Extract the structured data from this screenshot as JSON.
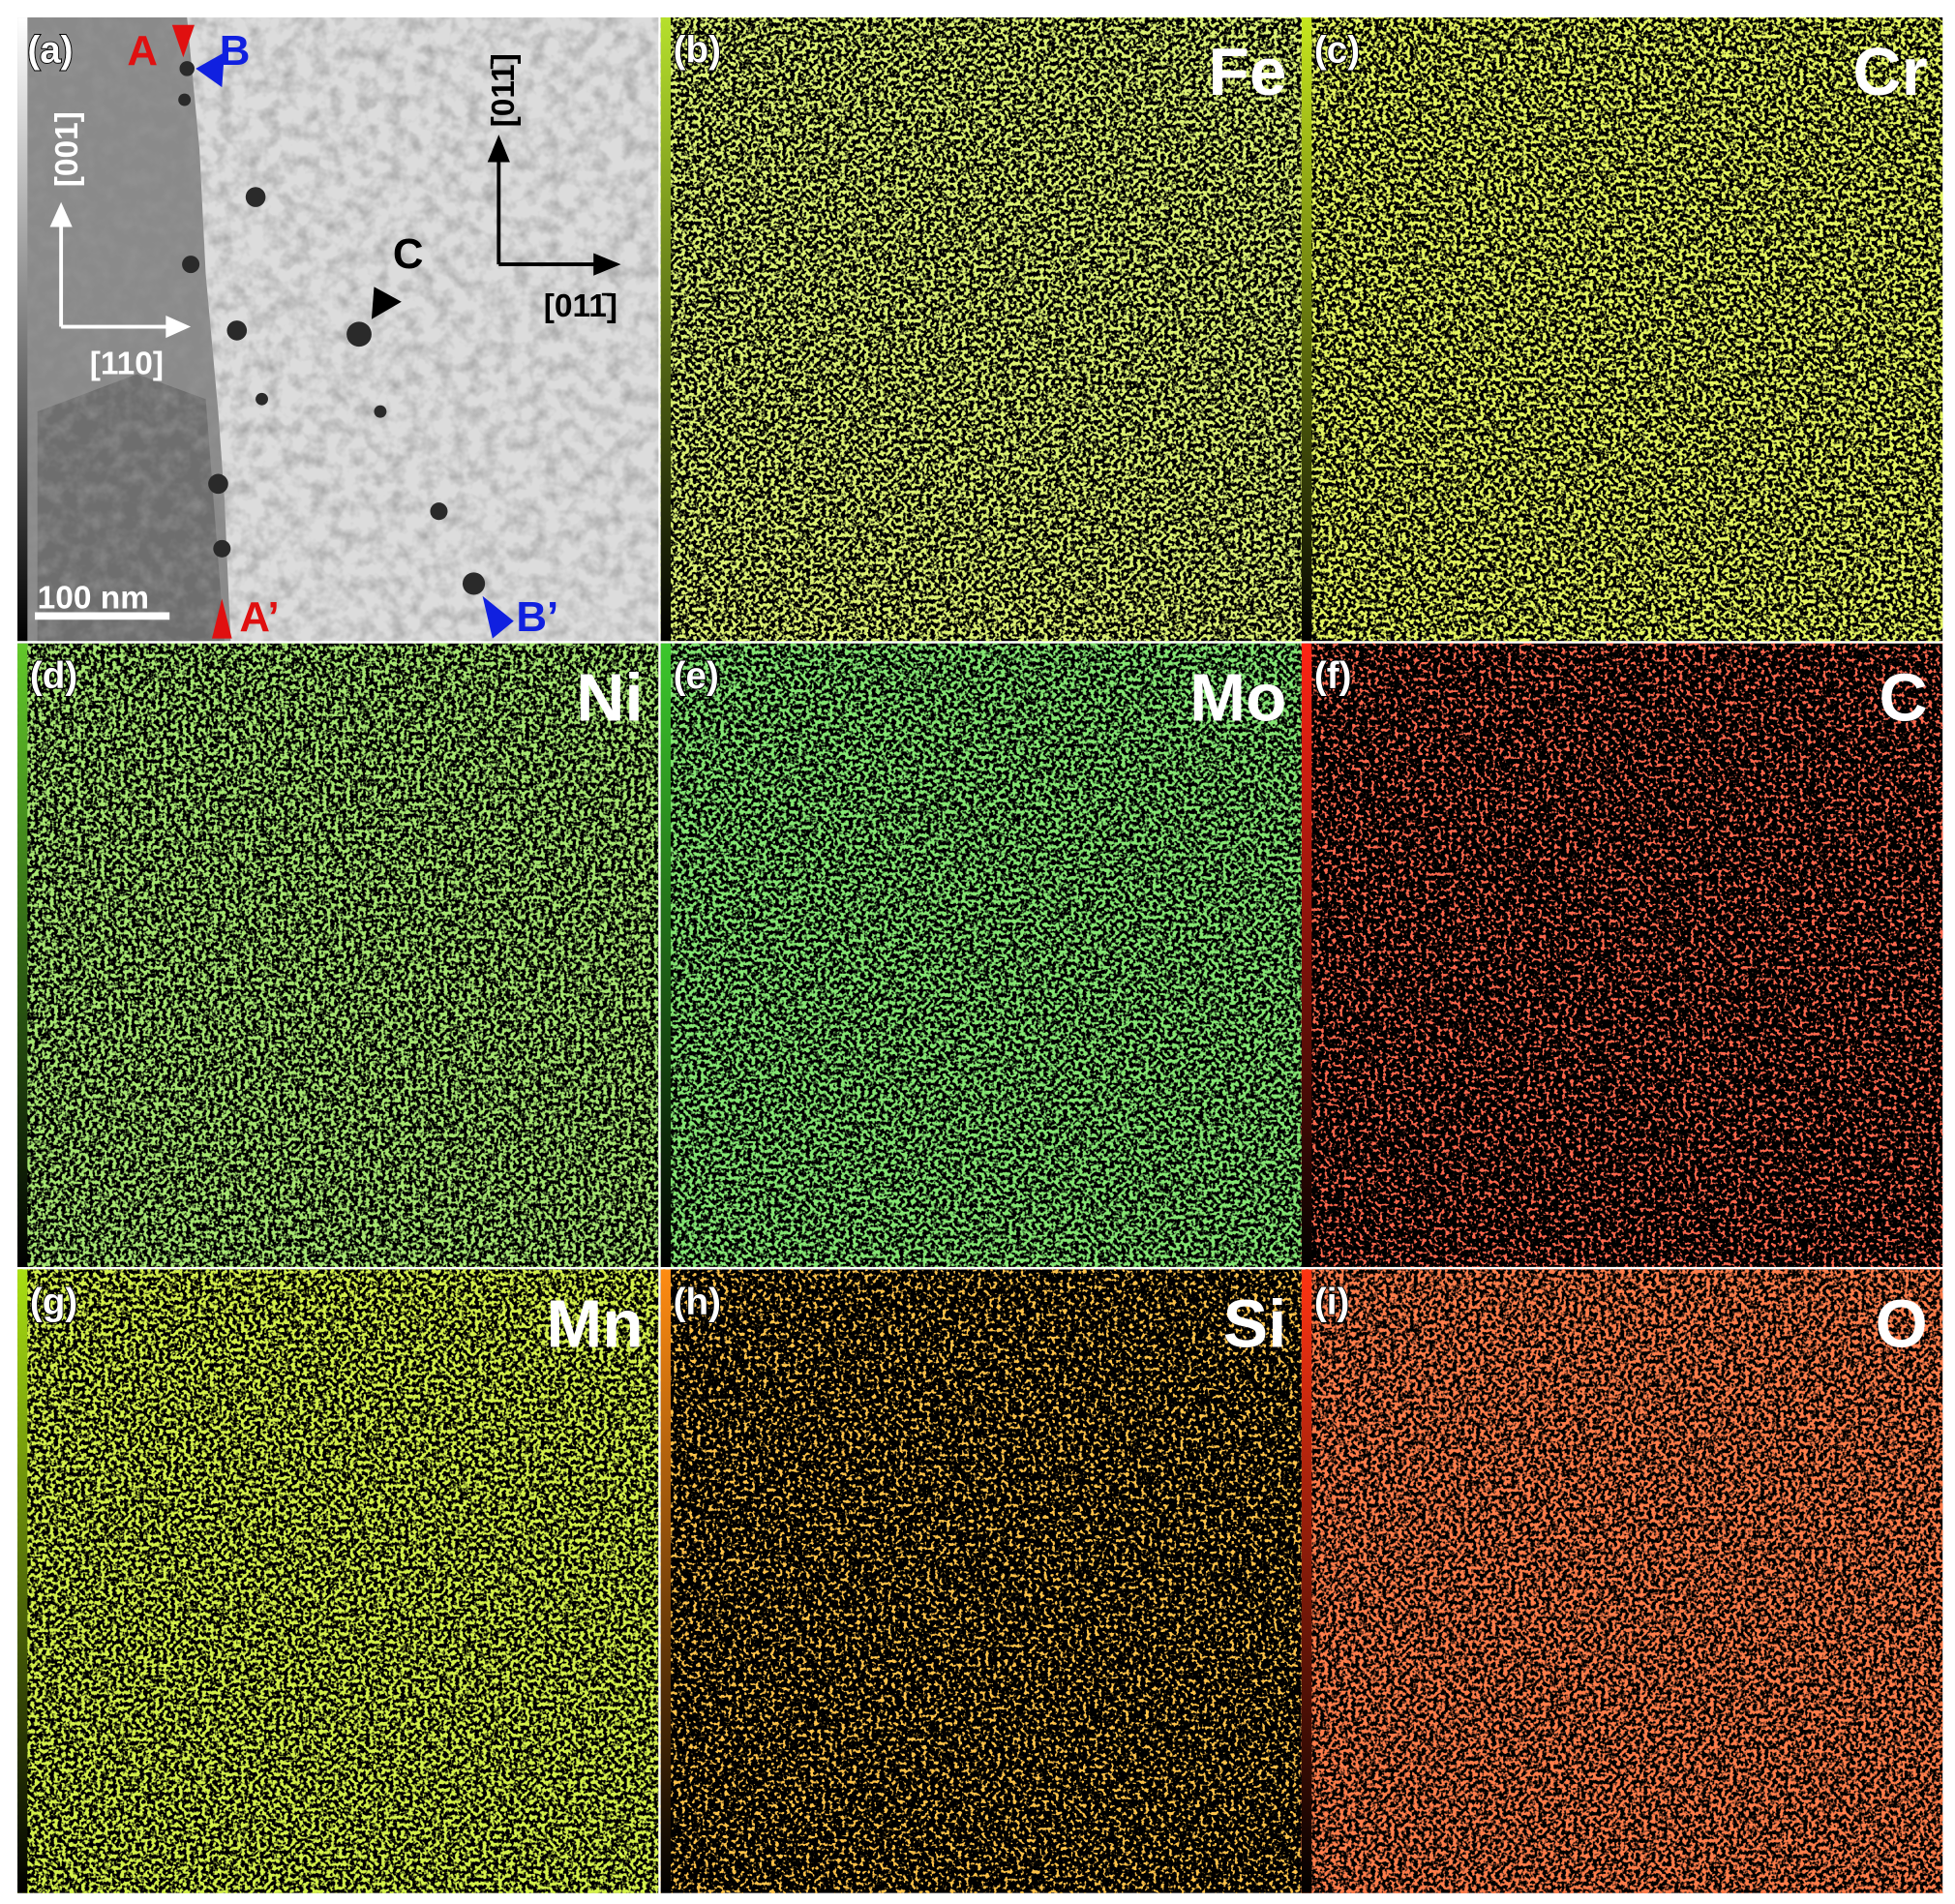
{
  "panels": [
    {
      "label": "(a)"
    },
    {
      "label": "(b)",
      "element": "Fe",
      "color": "#b6e02c"
    },
    {
      "label": "(c)",
      "element": "Cr",
      "color": "#c6e61e"
    },
    {
      "label": "(d)",
      "element": "Ni",
      "color": "#62c82a"
    },
    {
      "label": "(e)",
      "element": "Mo",
      "color": "#3cc82c"
    },
    {
      "label": "(f)",
      "element": "C",
      "color": "#ff2414"
    },
    {
      "label": "(g)",
      "element": "Mn",
      "color": "#a8de12"
    },
    {
      "label": "(h)",
      "element": "Si",
      "color": "#ff8c12"
    },
    {
      "label": "(i)",
      "element": "O",
      "color": "#ff3412"
    }
  ],
  "annotations": {
    "A": "A",
    "B": "B",
    "C": "C",
    "A_prime": "A’",
    "B_prime": "B’",
    "dir_001": "[001]",
    "dir_110": "[110]",
    "dir_011bar_v": "[011̄]",
    "dir_011bar_h": "[011̄]",
    "scale_bar": "100 nm"
  }
}
